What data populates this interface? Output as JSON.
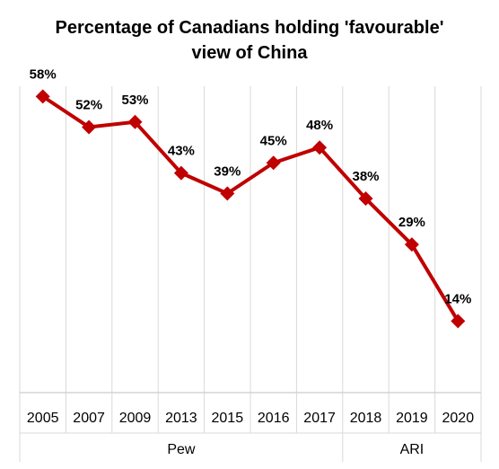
{
  "title_lines": [
    "Percentage of Canadians holding 'favourable'",
    "view of China"
  ],
  "chart_data": {
    "type": "line",
    "title": "Percentage of Canadians holding 'favourable' view of China",
    "categories": [
      "2005",
      "2007",
      "2009",
      "2013",
      "2015",
      "2016",
      "2017",
      "2018",
      "2019",
      "2020"
    ],
    "series": [
      {
        "values": [
          58,
          52,
          53,
          43,
          39,
          45,
          48,
          38,
          29,
          14
        ],
        "data_labels": [
          "58%",
          "52%",
          "53%",
          "43%",
          "39%",
          "45%",
          "48%",
          "38%",
          "29%",
          "14%"
        ]
      }
    ],
    "groups": [
      {
        "label": "Pew",
        "span": [
          0,
          6
        ]
      },
      {
        "label": "ARI",
        "span": [
          7,
          9
        ]
      }
    ],
    "ylim": [
      0,
      60
    ],
    "xlabel": "",
    "ylabel": "",
    "grid": "vertical",
    "legend": "none",
    "colors": {
      "line": "#c00000",
      "marker": "#c00000",
      "grid": "#d9d9d9"
    }
  }
}
